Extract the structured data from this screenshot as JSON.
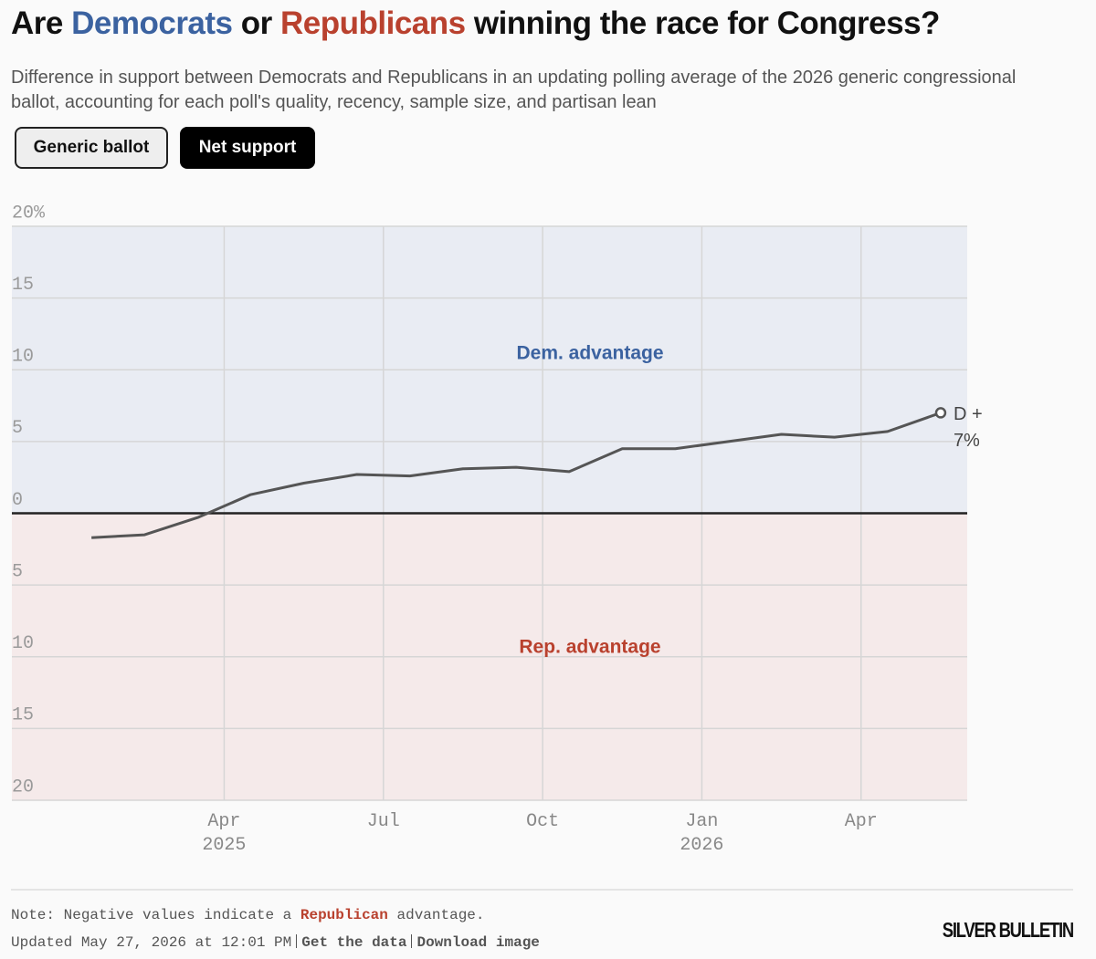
{
  "header": {
    "title": {
      "prefix": "Are",
      "dem": "Democrats",
      "middle": "or",
      "rep": "Republicans",
      "suffix": "winning the race for Congress?"
    },
    "subtitle": "Difference in support between Democrats and Republicans in an updating polling average of the 2026 generic congressional ballot, accounting for each poll's quality, recency, sample size, and partisan lean"
  },
  "buttons": [
    "Generic ballot",
    "Net support"
  ],
  "chart_data": {
    "type": "line",
    "x": [
      "2025-01",
      "2025-02",
      "2025-03",
      "2025-04",
      "2025-05",
      "2025-06",
      "2025-07",
      "2025-08",
      "2025-09",
      "2025-10",
      "2025-11",
      "2025-12",
      "2026-01",
      "2026-02",
      "2026-03",
      "2026-04",
      "2026-05"
    ],
    "values": [
      -1.7,
      -1.5,
      -0.3,
      1.3,
      2.1,
      2.7,
      2.6,
      3.1,
      3.2,
      2.9,
      4.5,
      4.5,
      5.0,
      5.5,
      5.3,
      5.7,
      7
    ],
    "value_labels": [
      null,
      null,
      null,
      null,
      null,
      null,
      null,
      null,
      null,
      null,
      null,
      null,
      null,
      null,
      null,
      null,
      "D + 7%"
    ],
    "color": "#555555",
    "xlim": [
      "2024-12",
      "2026-06"
    ],
    "xticks": [
      {
        "value": "2025-04",
        "label": "Apr 2025"
      },
      {
        "value": "2025-07",
        "label": "Jul"
      },
      {
        "value": "2025-10",
        "label": "Oct"
      },
      {
        "value": "2026-01",
        "label": "Jan 2026"
      },
      {
        "value": "2026-04",
        "label": "Apr"
      }
    ],
    "ylim": [
      -20,
      20
    ],
    "yticks": [
      {
        "value": 20,
        "label": "20%"
      },
      15,
      10,
      5,
      0,
      {
        "value": -5,
        "label": "5"
      },
      {
        "value": -10,
        "label": "10"
      },
      {
        "value": -15,
        "label": "15"
      },
      {
        "value": -20,
        "label": "20"
      }
    ],
    "grid": true,
    "annotations": [
      "Dem. advantage",
      "Rep. advantage"
    ]
  },
  "note": {
    "prefix": "Note: Negative values indicate a",
    "party": "Republican",
    "suffix": "advantage."
  },
  "footer": {
    "updated": "Updated May 27, 2026 at 12:01 PM",
    "links": [
      "Get the data",
      "Download image"
    ],
    "logo": "SILVER BULLETIN"
  }
}
